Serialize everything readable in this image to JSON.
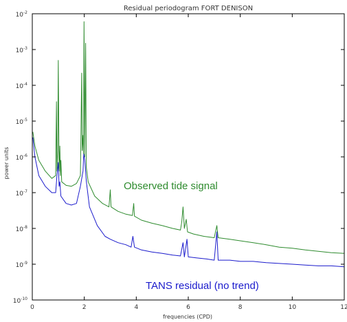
{
  "chart_data": {
    "type": "line",
    "title": "Residual periodogram FORT DENISON",
    "xlabel": "frequencies (CPD)",
    "ylabel": "power units",
    "xlim": [
      0,
      12
    ],
    "ylim": [
      1e-10,
      0.01
    ],
    "yscale": "log",
    "x_ticks": [
      "0",
      "2",
      "4",
      "6",
      "8",
      "10",
      "12"
    ],
    "y_ticks": [
      {
        "base": "10",
        "exp": "-2",
        "value": 0.01
      },
      {
        "base": "10",
        "exp": "-3",
        "value": 0.001
      },
      {
        "base": "10",
        "exp": "-4",
        "value": 0.0001
      },
      {
        "base": "10",
        "exp": "-5",
        "value": 1e-05
      },
      {
        "base": "10",
        "exp": "-6",
        "value": 1e-06
      },
      {
        "base": "10",
        "exp": "-7",
        "value": 1e-07
      },
      {
        "base": "10",
        "exp": "-8",
        "value": 1e-08
      },
      {
        "base": "10",
        "exp": "-9",
        "value": 1e-09
      },
      {
        "base": "10",
        "exp": "-10",
        "value": 1e-10
      }
    ],
    "grid": false,
    "annotations": [
      {
        "text": "Observed tide signal",
        "color": "#2e8b2e"
      },
      {
        "text": "TANS residual (no trend)",
        "color": "#1a1acc"
      }
    ],
    "series": [
      {
        "color": "#2e8b2e",
        "points": [
          [
            0.02,
            5e-06
          ],
          [
            0.1,
            2e-06
          ],
          [
            0.25,
            8e-07
          ],
          [
            0.5,
            4e-07
          ],
          [
            0.75,
            2.5e-07
          ],
          [
            0.9,
            3e-07
          ],
          [
            0.93,
            3.5e-05
          ],
          [
            0.95,
            4e-07
          ],
          [
            0.98,
            1.5e-06
          ],
          [
            1.0,
            0.0005
          ],
          [
            1.03,
            4e-07
          ],
          [
            1.06,
            2e-06
          ],
          [
            1.08,
            3e-07
          ],
          [
            1.1,
            8e-07
          ],
          [
            1.13,
            2e-07
          ],
          [
            1.3,
            1.6e-07
          ],
          [
            1.5,
            1.5e-07
          ],
          [
            1.7,
            1.8e-07
          ],
          [
            1.85,
            3e-07
          ],
          [
            1.9,
            0.00022
          ],
          [
            1.92,
            1.5e-06
          ],
          [
            1.95,
            4e-06
          ],
          [
            1.97,
            1.2e-06
          ],
          [
            1.99,
            0.006
          ],
          [
            2.02,
            1e-06
          ],
          [
            2.05,
            0.0015
          ],
          [
            2.08,
            5e-07
          ],
          [
            2.15,
            2e-07
          ],
          [
            2.4,
            8e-08
          ],
          [
            2.7,
            5e-08
          ],
          [
            2.95,
            4e-08
          ],
          [
            3.0,
            1.2e-07
          ],
          [
            3.03,
            4e-08
          ],
          [
            3.3,
            3e-08
          ],
          [
            3.6,
            2.5e-08
          ],
          [
            3.85,
            2.3e-08
          ],
          [
            3.9,
            5e-08
          ],
          [
            3.93,
            2.2e-08
          ],
          [
            4.2,
            1.7e-08
          ],
          [
            4.6,
            1.4e-08
          ],
          [
            5.0,
            1.2e-08
          ],
          [
            5.4,
            1e-08
          ],
          [
            5.7,
            9e-09
          ],
          [
            5.75,
            1.5e-08
          ],
          [
            5.8,
            4e-08
          ],
          [
            5.85,
            1e-08
          ],
          [
            5.92,
            1.8e-08
          ],
          [
            5.97,
            8e-09
          ],
          [
            6.2,
            7e-09
          ],
          [
            6.6,
            6e-09
          ],
          [
            7.0,
            5.5e-09
          ],
          [
            7.1,
            1.2e-08
          ],
          [
            7.15,
            5.5e-09
          ],
          [
            7.6,
            5e-09
          ],
          [
            8.0,
            4.5e-09
          ],
          [
            8.5,
            4e-09
          ],
          [
            9.0,
            3.5e-09
          ],
          [
            9.5,
            3e-09
          ],
          [
            10.0,
            2.8e-09
          ],
          [
            10.5,
            2.5e-09
          ],
          [
            11.0,
            2.3e-09
          ],
          [
            11.5,
            2.1e-09
          ],
          [
            12.0,
            2e-09
          ]
        ]
      },
      {
        "color": "#1a1acc",
        "points": [
          [
            0.02,
            3.5e-06
          ],
          [
            0.1,
            1e-06
          ],
          [
            0.25,
            3e-07
          ],
          [
            0.5,
            1.5e-07
          ],
          [
            0.75,
            1e-07
          ],
          [
            0.9,
            1e-07
          ],
          [
            0.95,
            3e-07
          ],
          [
            1.0,
            7e-07
          ],
          [
            1.03,
            1.5e-07
          ],
          [
            1.06,
            2e-07
          ],
          [
            1.1,
            8e-08
          ],
          [
            1.3,
            5e-08
          ],
          [
            1.5,
            4.5e-08
          ],
          [
            1.7,
            5e-08
          ],
          [
            1.85,
            1.5e-07
          ],
          [
            1.95,
            4e-07
          ],
          [
            1.98,
            1.2e-06
          ],
          [
            2.02,
            8e-07
          ],
          [
            2.08,
            2e-07
          ],
          [
            2.2,
            4e-08
          ],
          [
            2.5,
            1.2e-08
          ],
          [
            2.8,
            6e-09
          ],
          [
            3.0,
            5e-09
          ],
          [
            3.3,
            4e-09
          ],
          [
            3.6,
            3.5e-09
          ],
          [
            3.8,
            3e-09
          ],
          [
            3.87,
            6e-09
          ],
          [
            3.93,
            3e-09
          ],
          [
            4.2,
            2.5e-09
          ],
          [
            4.6,
            2.2e-09
          ],
          [
            5.0,
            2e-09
          ],
          [
            5.4,
            1.8e-09
          ],
          [
            5.7,
            1.7e-09
          ],
          [
            5.8,
            4e-09
          ],
          [
            5.85,
            1.6e-09
          ],
          [
            5.95,
            5e-09
          ],
          [
            6.0,
            1.6e-09
          ],
          [
            6.3,
            1.5e-09
          ],
          [
            6.7,
            1.4e-09
          ],
          [
            7.0,
            1.3e-09
          ],
          [
            7.1,
            8e-09
          ],
          [
            7.15,
            1.3e-09
          ],
          [
            7.6,
            1.3e-09
          ],
          [
            8.0,
            1.2e-09
          ],
          [
            8.5,
            1.2e-09
          ],
          [
            9.0,
            1.1e-09
          ],
          [
            9.5,
            1.05e-09
          ],
          [
            10.0,
            1e-09
          ],
          [
            10.5,
            9.5e-10
          ],
          [
            11.0,
            9e-10
          ],
          [
            11.5,
            9e-10
          ],
          [
            12.0,
            8.5e-10
          ]
        ]
      }
    ]
  }
}
